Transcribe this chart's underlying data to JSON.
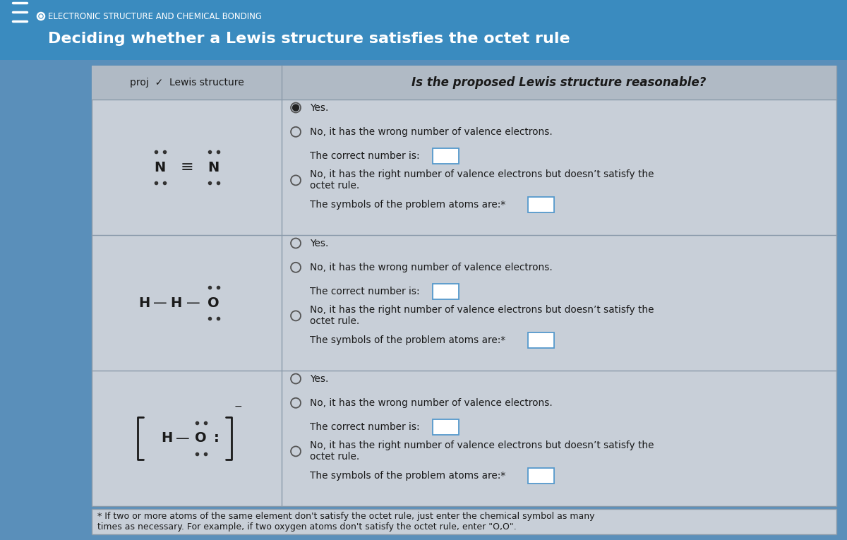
{
  "title_small": "ELECTRONIC STRUCTURE AND CHEMICAL BONDING",
  "title_large": "Deciding whether a Lewis structure satisfies the octet rule",
  "bg_color_header": "#3a8bbf",
  "bg_color_overall": "#5a8fba",
  "bg_color_table": "#c8cfd8",
  "bg_color_header_row": "#b0bac5",
  "border_color": "#8a9aaa",
  "text_dark": "#1a1a1a",
  "text_white": "#ffffff",
  "footnote": "* If two or more atoms of the same element don't satisfy the octet rule, just enter the chemical symbol as many\ntimes as necessary. For example, if two oxygen atoms don't satisfy the octet rule, enter \"O,O\".",
  "input_border": "#5599cc",
  "col_div": 0.255
}
